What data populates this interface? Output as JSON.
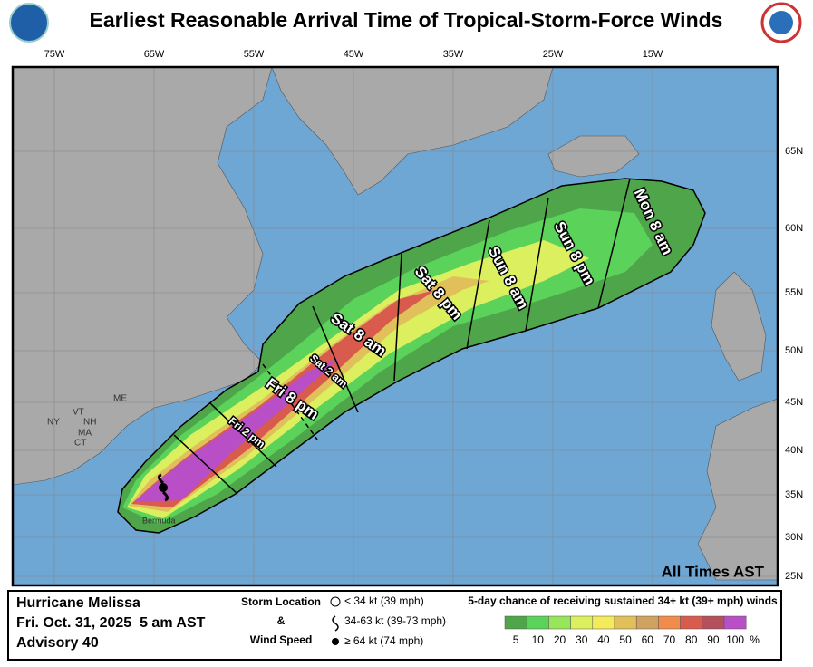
{
  "title": "Earliest Reasonable Arrival Time of Tropical-Storm-Force Winds",
  "longitudes": [
    "75W",
    "65W",
    "55W",
    "45W",
    "35W",
    "25W",
    "15W"
  ],
  "latitudes": [
    "65N",
    "60N",
    "55N",
    "50N",
    "45N",
    "40N",
    "35N",
    "30N",
    "25N"
  ],
  "states": [
    "ME",
    "NY",
    "VT",
    "NH",
    "MA",
    "CT"
  ],
  "place": "Bermuda",
  "times": [
    "Mon 8 am",
    "Sun 8 pm",
    "Sun 8 am",
    "Sat 8 pm",
    "Sat 8 am",
    "Sat 2 am",
    "Fri 8 pm",
    "Fri 2 pm"
  ],
  "time_note": "All Times AST",
  "legend": {
    "storm": "Hurricane Melissa",
    "date": "Fri. Oct. 31, 2025  5 am AST",
    "advisory": "Advisory 40",
    "location_title": [
      "Storm Location",
      "&",
      "Wind Speed"
    ],
    "symbols": [
      "< 34 kt (39 mph)",
      "34-63 kt (39-73 mph)",
      "≥ 64 kt (74 mph)"
    ],
    "scale_title": "5-day chance of receiving sustained 34+ kt (39+ mph) winds",
    "scale_values": [
      5,
      10,
      20,
      30,
      40,
      50,
      60,
      70,
      80,
      90,
      100
    ],
    "scale_unit": "%",
    "scale_colors": [
      "#4fa64a",
      "#5bd25a",
      "#97e55b",
      "#dcf05f",
      "#f3ea5c",
      "#e1c05c",
      "#cfa35f",
      "#f28c4d",
      "#d85b4d",
      "#b3505c",
      "#b84fc7"
    ]
  }
}
